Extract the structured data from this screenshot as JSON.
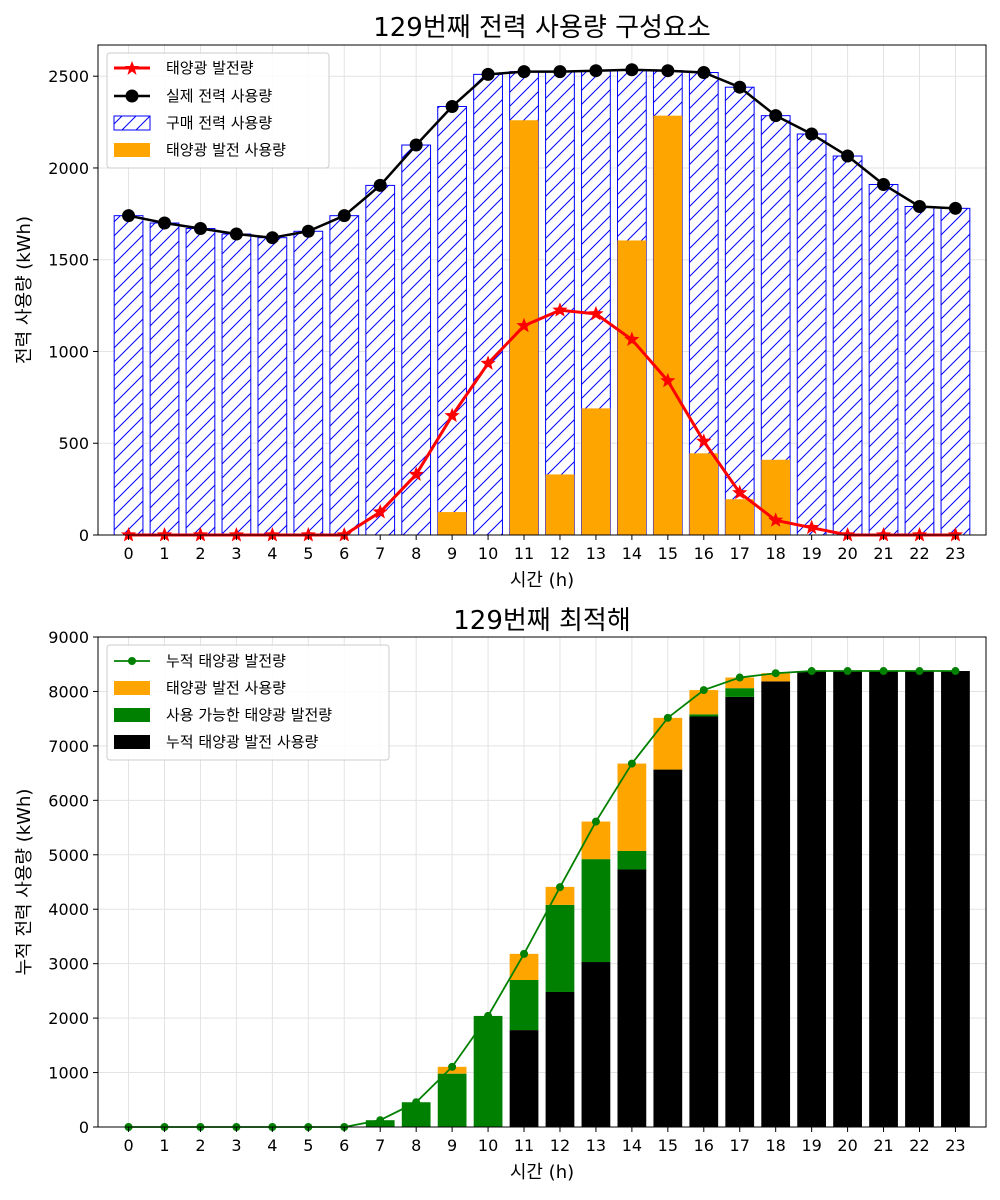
{
  "chart_data": [
    {
      "type": "bar",
      "title": "129번째 전력 사용량 구성요소",
      "xlabel": "시간 (h)",
      "ylabel": "전력 사용량 (kWh)",
      "x": [
        0,
        1,
        2,
        3,
        4,
        5,
        6,
        7,
        8,
        9,
        10,
        11,
        12,
        13,
        14,
        15,
        16,
        17,
        18,
        19,
        20,
        21,
        22,
        23
      ],
      "xtick_labels": [
        "0",
        "1",
        "2",
        "3",
        "4",
        "5",
        "6",
        "7",
        "8",
        "9",
        "10",
        "11",
        "12",
        "13",
        "14",
        "15",
        "16",
        "17",
        "18",
        "19",
        "20",
        "21",
        "22",
        "23"
      ],
      "ylim": [
        0,
        2670
      ],
      "yticks": [
        0,
        500,
        1000,
        1500,
        2000,
        2500
      ],
      "grid": true,
      "legend_position": "upper-left",
      "series": [
        {
          "name": "태양광 발전량",
          "kind": "line",
          "marker": "star",
          "color": "#ff0000",
          "values": [
            0,
            0,
            0,
            0,
            0,
            0,
            0,
            125,
            330,
            650,
            935,
            1140,
            1225,
            1205,
            1065,
            840,
            510,
            230,
            80,
            40,
            0,
            0,
            0,
            0
          ]
        },
        {
          "name": "실제 전력 사용량",
          "kind": "line",
          "marker": "circle",
          "color": "#000000",
          "values": [
            1740,
            1700,
            1670,
            1640,
            1620,
            1655,
            1740,
            1905,
            2125,
            2335,
            2510,
            2525,
            2525,
            2530,
            2535,
            2530,
            2520,
            2440,
            2285,
            2185,
            2065,
            1910,
            1790,
            1780
          ]
        },
        {
          "name": "구매 전력 사용량",
          "kind": "bar",
          "pattern": "hatch",
          "color": "#0000ff",
          "values": [
            1740,
            1700,
            1670,
            1640,
            1620,
            1655,
            1740,
            1905,
            2125,
            2335,
            2510,
            2525,
            2525,
            2530,
            2535,
            2530,
            2520,
            2440,
            2285,
            2185,
            2065,
            1910,
            1790,
            1780
          ]
        },
        {
          "name": "태양광 발전 사용량",
          "kind": "bar",
          "color": "#ffa500",
          "values": [
            0,
            0,
            0,
            0,
            0,
            0,
            0,
            0,
            0,
            125,
            0,
            2260,
            330,
            690,
            1605,
            2285,
            445,
            195,
            410,
            0,
            0,
            0,
            0,
            0
          ]
        }
      ]
    },
    {
      "type": "bar",
      "title": "129번째 최적해",
      "xlabel": "시간 (h)",
      "ylabel": "누적 전력 사용량 (kWh)",
      "x": [
        0,
        1,
        2,
        3,
        4,
        5,
        6,
        7,
        8,
        9,
        10,
        11,
        12,
        13,
        14,
        15,
        16,
        17,
        18,
        19,
        20,
        21,
        22,
        23
      ],
      "xtick_labels": [
        "0",
        "1",
        "2",
        "3",
        "4",
        "5",
        "6",
        "7",
        "8",
        "9",
        "10",
        "11",
        "12",
        "13",
        "14",
        "15",
        "16",
        "17",
        "18",
        "19",
        "20",
        "21",
        "22",
        "23"
      ],
      "ylim": [
        0,
        9000
      ],
      "yticks": [
        0,
        1000,
        2000,
        3000,
        4000,
        5000,
        6000,
        7000,
        8000,
        9000
      ],
      "grid": true,
      "legend_position": "upper-left",
      "series": [
        {
          "name": "누적 태양광 발전량",
          "kind": "line",
          "marker": "circle",
          "color": "#008000",
          "values": [
            0,
            0,
            0,
            0,
            0,
            0,
            0,
            125,
            455,
            1105,
            2040,
            3180,
            4405,
            5610,
            6675,
            7515,
            8025,
            8255,
            8335,
            8375,
            8375,
            8375,
            8375,
            8375
          ]
        },
        {
          "name": "태양광 발전 사용량",
          "kind": "bar",
          "color": "#ffa500",
          "values": [
            0,
            0,
            0,
            0,
            0,
            0,
            0,
            0,
            0,
            125,
            0,
            480,
            330,
            690,
            1605,
            950,
            445,
            195,
            150,
            0,
            0,
            0,
            0,
            0
          ]
        },
        {
          "name": "사용 가능한 태양광 발전량",
          "kind": "bar",
          "color": "#008000",
          "values": [
            0,
            0,
            0,
            0,
            0,
            0,
            0,
            125,
            455,
            980,
            2040,
            920,
            1600,
            1890,
            340,
            0,
            40,
            160,
            0,
            0,
            0,
            0,
            0,
            0
          ]
        },
        {
          "name": "누적 태양광 발전 사용량",
          "kind": "bar",
          "color": "#000000",
          "values": [
            0,
            0,
            0,
            0,
            0,
            0,
            0,
            0,
            0,
            0,
            0,
            1780,
            2480,
            3030,
            4730,
            6565,
            7540,
            7900,
            8185,
            8375,
            8375,
            8375,
            8375,
            8375
          ]
        }
      ]
    }
  ]
}
